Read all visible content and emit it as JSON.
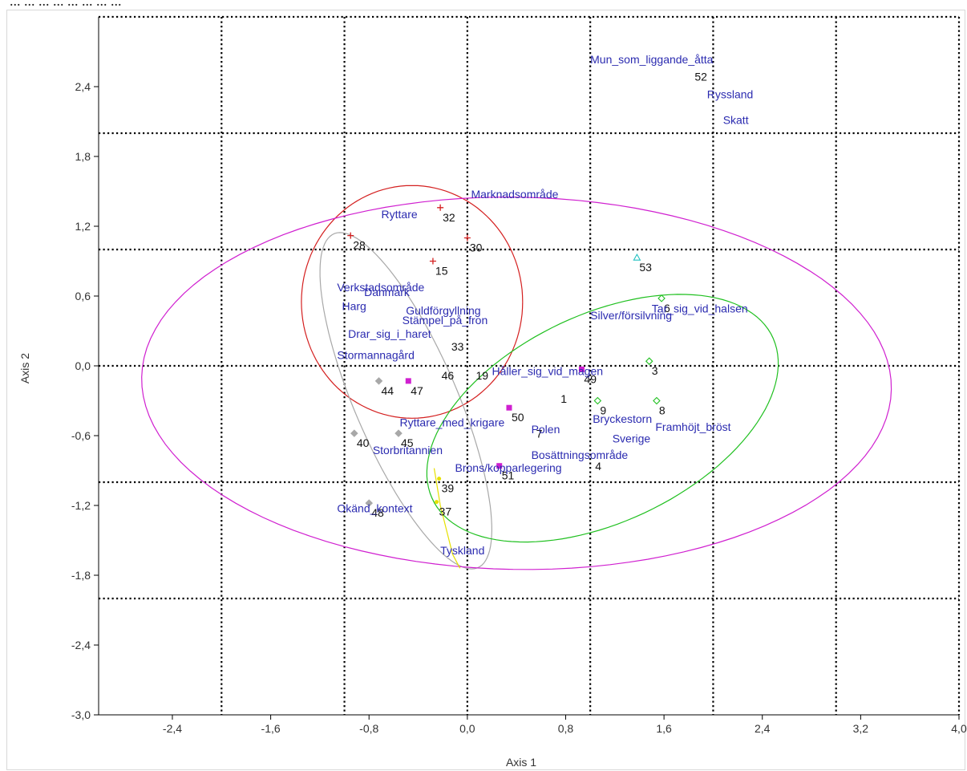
{
  "top_caption": "... ... ... ... ...  ... ... ...",
  "chart_data": {
    "type": "scatter",
    "title": "",
    "xlabel": "Axis 1",
    "ylabel": "Axis 2",
    "xlim": [
      -3.0,
      4.0
    ],
    "ylim": [
      -3.0,
      3.0
    ],
    "x_ticks": [
      "-2,4",
      "-1,6",
      "-0,8",
      "0,0",
      "0,8",
      "1,6",
      "2,4",
      "3,2",
      "4,0"
    ],
    "x_tick_values": [
      -2.4,
      -1.6,
      -0.8,
      0.0,
      0.8,
      1.6,
      2.4,
      3.2,
      4.0
    ],
    "y_ticks": [
      "2,4",
      "1,8",
      "1,2",
      "0,6",
      "0,0",
      "-0,6",
      "-1,2",
      "-1,8",
      "-2,4",
      "-3,0"
    ],
    "y_tick_values": [
      2.4,
      1.8,
      1.2,
      0.6,
      0.0,
      -0.6,
      -1.2,
      -1.8,
      -2.4,
      -3.0
    ],
    "gridlines_x": [
      -2.0,
      -1.0,
      0.0,
      1.0,
      2.0,
      3.0
    ],
    "gridlines_y": [
      2.0,
      1.0,
      0.0,
      -1.0,
      -2.0
    ],
    "grid": "dotted",
    "colors": {
      "red_group": "#d42020",
      "grey_group": "#a8a8a8",
      "magenta_group": "#d020d0",
      "yellow_group": "#e6e000",
      "green_group": "#20c020",
      "cyan_group": "#20c0c0",
      "variable_label": "#2b2bb0",
      "number_label": "#111111"
    },
    "groups": [
      {
        "color": "red",
        "marker": "plus",
        "ellipse": {
          "cx": -0.45,
          "cy": 0.55,
          "rx": 0.9,
          "ry": 1.0,
          "angle": 0
        }
      },
      {
        "color": "grey",
        "marker": "diamond",
        "ellipse": {
          "cx": -0.5,
          "cy": -0.3,
          "rx": 1.55,
          "ry": 0.42,
          "angle": -68
        }
      },
      {
        "color": "magenta",
        "marker": "square",
        "ellipse": {
          "cx": 0.4,
          "cy": -0.15,
          "rx": 3.05,
          "ry": 1.6,
          "angle": -1
        }
      },
      {
        "color": "green",
        "marker": "diamond",
        "ellipse": {
          "cx": 1.1,
          "cy": -0.45,
          "rx": 1.55,
          "ry": 0.88,
          "angle": 28
        }
      },
      {
        "color": "yellow",
        "marker": "dot",
        "ellipse": null
      },
      {
        "color": "cyan",
        "marker": "triangle",
        "ellipse": null
      }
    ],
    "points": [
      {
        "label": "1",
        "x": 0.74,
        "y": -0.2,
        "color": "magenta",
        "marker": "none"
      },
      {
        "label": "3",
        "x": 1.48,
        "y": 0.04,
        "color": "green",
        "marker": "diamond"
      },
      {
        "label": "4",
        "x": 1.02,
        "y": -0.78,
        "color": "green",
        "marker": "none"
      },
      {
        "label": "6",
        "x": 1.58,
        "y": 0.58,
        "color": "green",
        "marker": "diamond"
      },
      {
        "label": "7",
        "x": 0.54,
        "y": -0.5,
        "color": "magenta",
        "marker": "none"
      },
      {
        "label": "8",
        "x": 1.54,
        "y": -0.3,
        "color": "green",
        "marker": "diamond"
      },
      {
        "label": "9",
        "x": 1.06,
        "y": -0.3,
        "color": "green",
        "marker": "diamond"
      },
      {
        "label": "15",
        "x": -0.28,
        "y": 0.9,
        "color": "red",
        "marker": "plus"
      },
      {
        "label": "19",
        "x": 0.05,
        "y": 0.0,
        "color": "red",
        "marker": "none"
      },
      {
        "label": "28",
        "x": -0.95,
        "y": 1.12,
        "color": "red",
        "marker": "plus"
      },
      {
        "label": "30",
        "x": 0.0,
        "y": 1.1,
        "color": "red",
        "marker": "plus"
      },
      {
        "label": "32",
        "x": -0.22,
        "y": 1.36,
        "color": "red",
        "marker": "plus"
      },
      {
        "label": "33",
        "x": -0.15,
        "y": 0.25,
        "color": "red",
        "marker": "none"
      },
      {
        "label": "37",
        "x": -0.25,
        "y": -1.17,
        "color": "yellow",
        "marker": "dot"
      },
      {
        "label": "39",
        "x": -0.23,
        "y": -0.97,
        "color": "yellow",
        "marker": "dot"
      },
      {
        "label": "40",
        "x": -0.92,
        "y": -0.58,
        "color": "grey",
        "marker": "diamond"
      },
      {
        "label": "44",
        "x": -0.72,
        "y": -0.13,
        "color": "grey",
        "marker": "diamond"
      },
      {
        "label": "45",
        "x": -0.56,
        "y": -0.58,
        "color": "grey",
        "marker": "diamond"
      },
      {
        "label": "46",
        "x": -0.23,
        "y": 0.0,
        "color": "red",
        "marker": "none"
      },
      {
        "label": "47",
        "x": -0.48,
        "y": -0.13,
        "color": "magenta",
        "marker": "square"
      },
      {
        "label": "48",
        "x": -0.8,
        "y": -1.18,
        "color": "grey",
        "marker": "diamond"
      },
      {
        "label": "49",
        "x": 0.93,
        "y": -0.03,
        "color": "magenta",
        "marker": "square"
      },
      {
        "label": "50",
        "x": 0.34,
        "y": -0.36,
        "color": "magenta",
        "marker": "square"
      },
      {
        "label": "51",
        "x": 0.26,
        "y": -0.86,
        "color": "magenta",
        "marker": "square"
      },
      {
        "label": "52",
        "x": 1.83,
        "y": 2.57,
        "color": "cyan",
        "marker": "none"
      },
      {
        "label": "53",
        "x": 1.38,
        "y": 0.93,
        "color": "cyan",
        "marker": "triangle"
      }
    ],
    "variables": [
      {
        "label": "Mun_som_liggande_åtta",
        "x": 1.0,
        "y": 2.6
      },
      {
        "label": "Ryssland",
        "x": 1.95,
        "y": 2.3
      },
      {
        "label": "Skatt",
        "x": 2.08,
        "y": 2.08
      },
      {
        "label": "Marknadsområde",
        "x": 0.03,
        "y": 1.44
      },
      {
        "label": "Ryttare",
        "x": -0.7,
        "y": 1.27
      },
      {
        "label": "Verkstadsområde",
        "x": -1.06,
        "y": 0.64
      },
      {
        "label": "Danmark",
        "x": -0.84,
        "y": 0.6
      },
      {
        "label": "Harg",
        "x": -1.02,
        "y": 0.48
      },
      {
        "label": "Guldförgyllning",
        "x": -0.5,
        "y": 0.44
      },
      {
        "label": "Stämpel_på_fron",
        "x": -0.53,
        "y": 0.36
      },
      {
        "label": "Tar_sig_vid_halsen",
        "x": 1.5,
        "y": 0.46
      },
      {
        "label": "Silver/försilvning",
        "x": 1.0,
        "y": 0.4
      },
      {
        "label": "Drar_sig_i_haret",
        "x": -0.97,
        "y": 0.24
      },
      {
        "label": "Stormannagård",
        "x": -1.06,
        "y": 0.06
      },
      {
        "label": "Håller_sig_vid_magen",
        "x": 0.2,
        "y": -0.08
      },
      {
        "label": "Ryttare_med_krigare",
        "x": -0.55,
        "y": -0.52
      },
      {
        "label": "Polen",
        "x": 0.52,
        "y": -0.58
      },
      {
        "label": "Bryckestorn",
        "x": 1.02,
        "y": -0.49
      },
      {
        "label": "Framhöjt_bröst",
        "x": 1.53,
        "y": -0.56
      },
      {
        "label": "Sverige",
        "x": 1.18,
        "y": -0.66
      },
      {
        "label": "Storbritannien",
        "x": -0.77,
        "y": -0.76
      },
      {
        "label": "Bosättningsområde",
        "x": 0.52,
        "y": -0.8
      },
      {
        "label": "Brons/kopparlegering",
        "x": -0.1,
        "y": -0.91
      },
      {
        "label": "Okänd_kontext",
        "x": -1.06,
        "y": -1.26
      },
      {
        "label": "Tyskland",
        "x": -0.22,
        "y": -1.62
      }
    ]
  }
}
